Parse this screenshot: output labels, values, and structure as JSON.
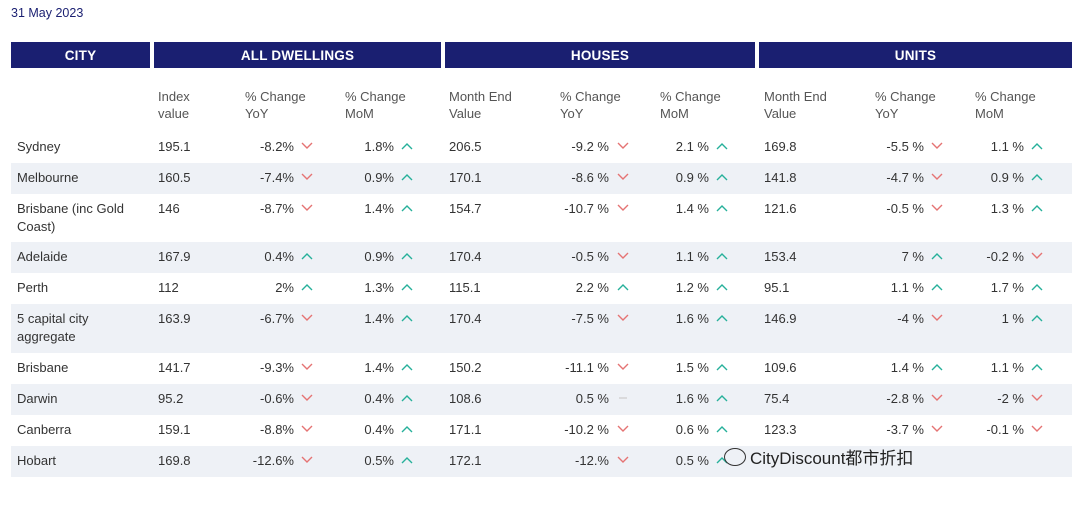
{
  "date": "31 May 2023",
  "headers": {
    "city": "CITY",
    "all_dwellings": "ALL DWELLINGS",
    "houses": "HOUSES",
    "units": "UNITS"
  },
  "subheaders": {
    "all_index": "Index\nvalue",
    "all_yoy": "% Change\nYoY",
    "all_mom": "% Change\nMoM",
    "houses_value": "Month End\nValue",
    "houses_yoy": "% Change\nYoY",
    "houses_mom": "% Change\nMoM",
    "units_value": "Month End\nValue",
    "units_yoy": "% Change\nYoY",
    "units_mom": "% Change\nMoM"
  },
  "rows": [
    {
      "city": "Sydney",
      "all_index": "195.1",
      "all_yoy": "-8.2%",
      "all_yoy_dir": "down",
      "all_mom": "1.8%",
      "all_mom_dir": "up",
      "h_value": "206.5",
      "h_yoy": "-9.2 %",
      "h_yoy_dir": "down",
      "h_mom": "2.1 %",
      "h_mom_dir": "up",
      "u_value": "169.8",
      "u_yoy": "-5.5 %",
      "u_yoy_dir": "down",
      "u_mom": "1.1 %",
      "u_mom_dir": "up"
    },
    {
      "city": "Melbourne",
      "all_index": "160.5",
      "all_yoy": "-7.4%",
      "all_yoy_dir": "down",
      "all_mom": "0.9%",
      "all_mom_dir": "up",
      "h_value": "170.1",
      "h_yoy": "-8.6 %",
      "h_yoy_dir": "down",
      "h_mom": "0.9 %",
      "h_mom_dir": "up",
      "u_value": "141.8",
      "u_yoy": "-4.7 %",
      "u_yoy_dir": "down",
      "u_mom": "0.9 %",
      "u_mom_dir": "up"
    },
    {
      "city": "Brisbane (inc Gold Coast)",
      "all_index": "146",
      "all_yoy": "-8.7%",
      "all_yoy_dir": "down",
      "all_mom": "1.4%",
      "all_mom_dir": "up",
      "h_value": "154.7",
      "h_yoy": "-10.7 %",
      "h_yoy_dir": "down",
      "h_mom": "1.4 %",
      "h_mom_dir": "up",
      "u_value": "121.6",
      "u_yoy": "-0.5 %",
      "u_yoy_dir": "down",
      "u_mom": "1.3 %",
      "u_mom_dir": "up"
    },
    {
      "city": "Adelaide",
      "all_index": "167.9",
      "all_yoy": "0.4%",
      "all_yoy_dir": "up",
      "all_mom": "0.9%",
      "all_mom_dir": "up",
      "h_value": "170.4",
      "h_yoy": "-0.5 %",
      "h_yoy_dir": "down",
      "h_mom": "1.1 %",
      "h_mom_dir": "up",
      "u_value": "153.4",
      "u_yoy": "7 %",
      "u_yoy_dir": "up",
      "u_mom": "-0.2 %",
      "u_mom_dir": "down"
    },
    {
      "city": "Perth",
      "all_index": "112",
      "all_yoy": "2%",
      "all_yoy_dir": "up",
      "all_mom": "1.3%",
      "all_mom_dir": "up",
      "h_value": "115.1",
      "h_yoy": "2.2 %",
      "h_yoy_dir": "up",
      "h_mom": "1.2 %",
      "h_mom_dir": "up",
      "u_value": "95.1",
      "u_yoy": "1.1 %",
      "u_yoy_dir": "up",
      "u_mom": "1.7 %",
      "u_mom_dir": "up"
    },
    {
      "city": "5 capital city aggregate",
      "all_index": "163.9",
      "all_yoy": "-6.7%",
      "all_yoy_dir": "down",
      "all_mom": "1.4%",
      "all_mom_dir": "up",
      "h_value": "170.4",
      "h_yoy": "-7.5 %",
      "h_yoy_dir": "down",
      "h_mom": "1.6 %",
      "h_mom_dir": "up",
      "u_value": "146.9",
      "u_yoy": "-4 %",
      "u_yoy_dir": "down",
      "u_mom": "1 %",
      "u_mom_dir": "up"
    },
    {
      "city": "Brisbane",
      "all_index": "141.7",
      "all_yoy": "-9.3%",
      "all_yoy_dir": "down",
      "all_mom": "1.4%",
      "all_mom_dir": "up",
      "h_value": "150.2",
      "h_yoy": "-11.1 %",
      "h_yoy_dir": "down",
      "h_mom": "1.5 %",
      "h_mom_dir": "up",
      "u_value": "109.6",
      "u_yoy": "1.4 %",
      "u_yoy_dir": "up",
      "u_mom": "1.1 %",
      "u_mom_dir": "up"
    },
    {
      "city": "Darwin",
      "all_index": "95.2",
      "all_yoy": "-0.6%",
      "all_yoy_dir": "down",
      "all_mom": "0.4%",
      "all_mom_dir": "up",
      "h_value": "108.6",
      "h_yoy": "0.5 %",
      "h_yoy_dir": "flat",
      "h_mom": "1.6 %",
      "h_mom_dir": "up",
      "u_value": "75.4",
      "u_yoy": "-2.8 %",
      "u_yoy_dir": "down",
      "u_mom": "-2 %",
      "u_mom_dir": "down"
    },
    {
      "city": "Canberra",
      "all_index": "159.1",
      "all_yoy": "-8.8%",
      "all_yoy_dir": "down",
      "all_mom": "0.4%",
      "all_mom_dir": "up",
      "h_value": "171.1",
      "h_yoy": "-10.2 %",
      "h_yoy_dir": "down",
      "h_mom": "0.6 %",
      "h_mom_dir": "up",
      "u_value": "123.3",
      "u_yoy": "-3.7 %",
      "u_yoy_dir": "down",
      "u_mom": "-0.1 %",
      "u_mom_dir": "down"
    },
    {
      "city": "Hobart",
      "all_index": "169.8",
      "all_yoy": "-12.6%",
      "all_yoy_dir": "down",
      "all_mom": "0.5%",
      "all_mom_dir": "up",
      "h_value": "172.1",
      "h_yoy": "-12.%",
      "h_yoy_dir": "down",
      "h_mom": "0.5 %",
      "h_mom_dir": "up",
      "u_value": "",
      "u_yoy": "",
      "u_yoy_dir": "",
      "u_mom": "",
      "u_mom_dir": ""
    }
  ],
  "watermark": "CityDiscount都市折扣",
  "colors": {
    "header_bg": "#1a1f71",
    "up": "#26b09a",
    "down": "#e57373",
    "alt_row": "#eef1f6"
  }
}
